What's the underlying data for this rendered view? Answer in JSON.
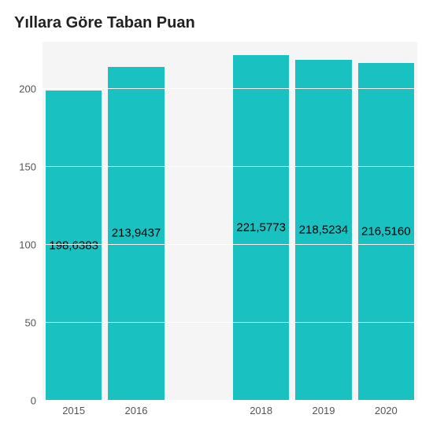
{
  "chart": {
    "type": "bar",
    "title": "Yıllara Göre Taban Puan",
    "title_fontsize": 20,
    "background_color": "#f5f5f5",
    "grid_color": "#ffffff",
    "bar_color": "#1ac1c1",
    "bar_width_ratio": 0.9,
    "label_fontsize": 15,
    "tick_fontsize": 13,
    "ylim": [
      0,
      230
    ],
    "yticks": [
      0,
      50,
      100,
      150,
      200
    ],
    "categories": [
      "2015",
      "2016",
      "",
      "2018",
      "2019",
      "2020"
    ],
    "values": [
      198.6383,
      213.9437,
      null,
      221.5773,
      218.5234,
      216.516
    ],
    "value_labels": [
      "198,6383",
      "213,9437",
      "",
      "221,5773",
      "218,5234",
      "216,5160"
    ]
  }
}
